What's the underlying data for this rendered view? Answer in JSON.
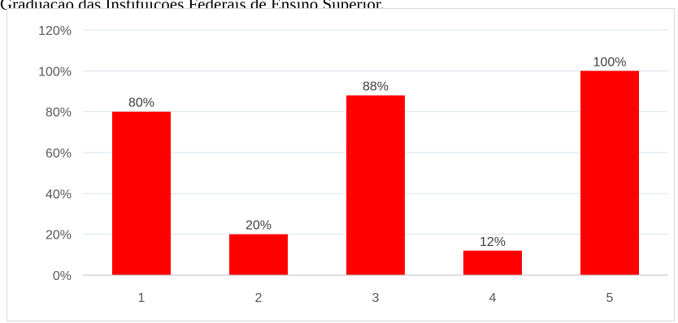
{
  "caption": "Graduação das Instituições Federais de Ensino Superior.",
  "chart_data": {
    "type": "bar",
    "categories": [
      "1",
      "2",
      "3",
      "4",
      "5"
    ],
    "values": [
      80,
      20,
      88,
      12,
      100
    ],
    "data_labels": [
      "80%",
      "20%",
      "88%",
      "12%",
      "100%"
    ],
    "y_ticks": [
      0,
      20,
      40,
      60,
      80,
      100,
      120
    ],
    "y_tick_labels": [
      "0%",
      "20%",
      "40%",
      "60%",
      "80%",
      "100%",
      "120%"
    ],
    "ylim": [
      0,
      120
    ],
    "title": "",
    "xlabel": "",
    "ylabel": "",
    "grid": true,
    "legend": "none",
    "bar_color": "#ff0000",
    "grid_color": "#d9e3f0"
  }
}
